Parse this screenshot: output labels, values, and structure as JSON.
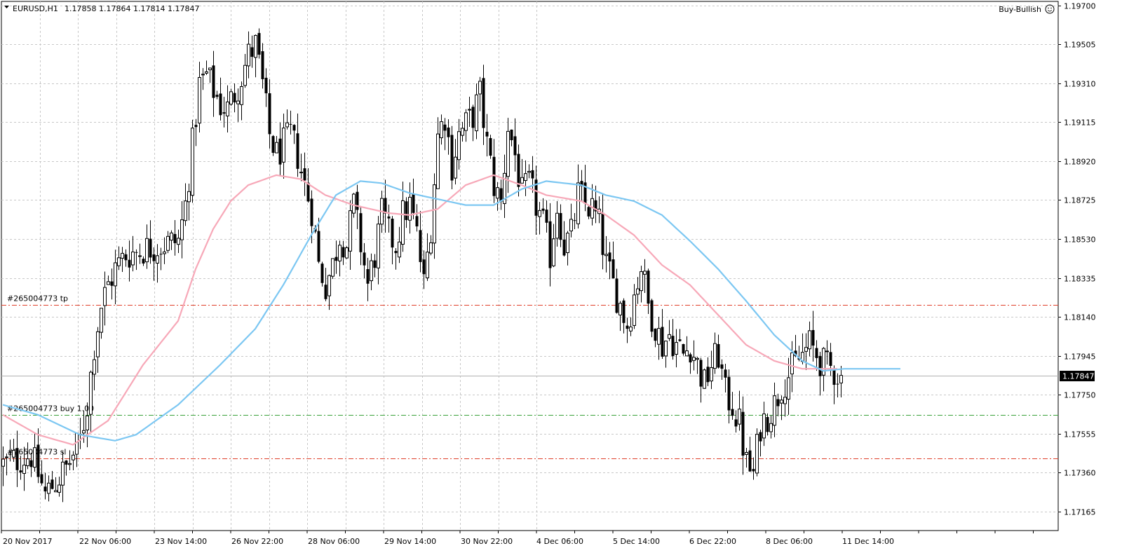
{
  "header": {
    "symbol": "EURUSD,H1",
    "ohlc": "1.17858 1.17864 1.17814 1.17847",
    "expert": "Buy-Bullish"
  },
  "colors": {
    "candle": "#000000",
    "ma_fast": "#f7a8b8",
    "ma_slow": "#7cc7f2",
    "tp_line": "#e0402a",
    "sl_line": "#e0402a",
    "entry_line": "#3aa13a",
    "grid": "#c8c8c8",
    "current_badge": "#000000"
  },
  "chart_data": {
    "type": "candlestick",
    "symbol": "EURUSD",
    "timeframe": "H1",
    "current_price": 1.17847,
    "current_price_label": "1.17847",
    "ylim": [
      1.1707,
      1.1972
    ],
    "y_ticks": [
      "1.19700",
      "1.19505",
      "1.19310",
      "1.19115",
      "1.18920",
      "1.18725",
      "1.18530",
      "1.18335",
      "1.18140",
      "1.17945",
      "1.17750",
      "1.17555",
      "1.17360",
      "1.17165"
    ],
    "x_ticks": [
      "20 Nov 2017",
      "22 Nov 06:00",
      "23 Nov 14:00",
      "26 Nov 22:00",
      "28 Nov 06:00",
      "29 Nov 14:00",
      "30 Nov 22:00",
      "4 Dec 06:00",
      "5 Dec 14:00",
      "6 Dec 22:00",
      "8 Dec 06:00",
      "11 Dec 14:00"
    ],
    "bar_count": 240,
    "close_anchors": [
      [
        0,
        1.174
      ],
      [
        8,
        1.1745
      ],
      [
        12,
        1.1725
      ],
      [
        18,
        1.1738
      ],
      [
        22,
        1.1752
      ],
      [
        24,
        1.177
      ],
      [
        26,
        1.18
      ],
      [
        28,
        1.182
      ],
      [
        30,
        1.183
      ],
      [
        32,
        1.1838
      ],
      [
        35,
        1.1845
      ],
      [
        40,
        1.1848
      ],
      [
        45,
        1.185
      ],
      [
        50,
        1.1852
      ],
      [
        52,
        1.187
      ],
      [
        54,
        1.19
      ],
      [
        56,
        1.193
      ],
      [
        58,
        1.1935
      ],
      [
        62,
        1.192
      ],
      [
        64,
        1.1918
      ],
      [
        67,
        1.193
      ],
      [
        70,
        1.1945
      ],
      [
        72,
        1.195
      ],
      [
        74,
        1.193
      ],
      [
        76,
        1.1905
      ],
      [
        78,
        1.1895
      ],
      [
        80,
        1.19
      ],
      [
        82,
        1.1905
      ],
      [
        84,
        1.1895
      ],
      [
        86,
        1.188
      ],
      [
        88,
        1.1868
      ],
      [
        90,
        1.184
      ],
      [
        92,
        1.183
      ],
      [
        94,
        1.184
      ],
      [
        96,
        1.1855
      ],
      [
        98,
        1.185
      ],
      [
        100,
        1.187
      ],
      [
        102,
        1.185
      ],
      [
        104,
        1.183
      ],
      [
        106,
        1.1845
      ],
      [
        108,
        1.1865
      ],
      [
        110,
        1.1855
      ],
      [
        112,
        1.185
      ],
      [
        114,
        1.1865
      ],
      [
        116,
        1.187
      ],
      [
        118,
        1.1855
      ],
      [
        120,
        1.183
      ],
      [
        122,
        1.186
      ],
      [
        124,
        1.1905
      ],
      [
        126,
        1.1915
      ],
      [
        128,
        1.189
      ],
      [
        130,
        1.1905
      ],
      [
        132,
        1.191
      ],
      [
        134,
        1.1915
      ],
      [
        136,
        1.1925
      ],
      [
        138,
        1.19
      ],
      [
        140,
        1.188
      ],
      [
        142,
        1.187
      ],
      [
        144,
        1.191
      ],
      [
        146,
        1.1895
      ],
      [
        148,
        1.1875
      ],
      [
        150,
        1.188
      ],
      [
        152,
        1.187
      ],
      [
        154,
        1.186
      ],
      [
        156,
        1.1845
      ],
      [
        158,
        1.187
      ],
      [
        160,
        1.185
      ],
      [
        162,
        1.1855
      ],
      [
        164,
        1.1875
      ],
      [
        166,
        1.187
      ],
      [
        168,
        1.1868
      ],
      [
        170,
        1.186
      ],
      [
        172,
        1.184
      ],
      [
        174,
        1.183
      ],
      [
        176,
        1.182
      ],
      [
        178,
        1.181
      ],
      [
        180,
        1.1825
      ],
      [
        182,
        1.184
      ],
      [
        184,
        1.182
      ],
      [
        186,
        1.181
      ],
      [
        188,
        1.18
      ],
      [
        190,
        1.1805
      ],
      [
        192,
        1.18
      ],
      [
        194,
        1.1795
      ],
      [
        196,
        1.18
      ],
      [
        198,
        1.179
      ],
      [
        200,
        1.178
      ],
      [
        202,
        1.179
      ],
      [
        204,
        1.1795
      ],
      [
        206,
        1.1775
      ],
      [
        208,
        1.177
      ],
      [
        210,
        1.176
      ],
      [
        212,
        1.174
      ],
      [
        214,
        1.1735
      ],
      [
        216,
        1.176
      ],
      [
        218,
        1.1765
      ],
      [
        220,
        1.177
      ],
      [
        222,
        1.178
      ],
      [
        224,
        1.1785
      ],
      [
        226,
        1.179
      ],
      [
        228,
        1.1795
      ],
      [
        230,
        1.18
      ],
      [
        232,
        1.1795
      ],
      [
        234,
        1.179
      ],
      [
        236,
        1.1788
      ],
      [
        238,
        1.1786
      ],
      [
        239,
        1.17847
      ]
    ],
    "ma_fast_anchors": [
      [
        0,
        1.1765
      ],
      [
        10,
        1.1755
      ],
      [
        20,
        1.175
      ],
      [
        30,
        1.1762
      ],
      [
        40,
        1.179
      ],
      [
        50,
        1.1812
      ],
      [
        55,
        1.1838
      ],
      [
        60,
        1.1858
      ],
      [
        65,
        1.1872
      ],
      [
        70,
        1.188
      ],
      [
        78,
        1.1885
      ],
      [
        85,
        1.1883
      ],
      [
        92,
        1.1875
      ],
      [
        100,
        1.187
      ],
      [
        110,
        1.1866
      ],
      [
        116,
        1.1865
      ],
      [
        124,
        1.1868
      ],
      [
        132,
        1.188
      ],
      [
        140,
        1.1885
      ],
      [
        148,
        1.188
      ],
      [
        155,
        1.1875
      ],
      [
        165,
        1.1872
      ],
      [
        172,
        1.1865
      ],
      [
        180,
        1.1855
      ],
      [
        188,
        1.184
      ],
      [
        196,
        1.183
      ],
      [
        204,
        1.1815
      ],
      [
        212,
        1.18
      ],
      [
        220,
        1.1792
      ],
      [
        228,
        1.1788
      ],
      [
        234,
        1.1788
      ],
      [
        238,
        1.1788
      ]
    ],
    "ma_slow_anchors": [
      [
        0,
        1.177
      ],
      [
        10,
        1.1765
      ],
      [
        22,
        1.1755
      ],
      [
        32,
        1.1752
      ],
      [
        38,
        1.1755
      ],
      [
        50,
        1.177
      ],
      [
        62,
        1.179
      ],
      [
        72,
        1.1808
      ],
      [
        80,
        1.183
      ],
      [
        88,
        1.1855
      ],
      [
        95,
        1.1875
      ],
      [
        102,
        1.1882
      ],
      [
        108,
        1.1881
      ],
      [
        116,
        1.1876
      ],
      [
        124,
        1.1873
      ],
      [
        132,
        1.187
      ],
      [
        140,
        1.187
      ],
      [
        148,
        1.1878
      ],
      [
        155,
        1.1882
      ],
      [
        165,
        1.188
      ],
      [
        172,
        1.1875
      ],
      [
        180,
        1.1872
      ],
      [
        188,
        1.1865
      ],
      [
        196,
        1.1852
      ],
      [
        204,
        1.1838
      ],
      [
        212,
        1.1822
      ],
      [
        220,
        1.1805
      ],
      [
        228,
        1.1792
      ],
      [
        234,
        1.1787
      ],
      [
        240,
        1.1788
      ],
      [
        246,
        1.1788
      ]
    ],
    "levels": [
      {
        "name": "tp",
        "label": "#265004773 tp",
        "price": 1.182,
        "style": "dashdot"
      },
      {
        "name": "entry",
        "label": "#265004773 buy 1.00",
        "price": 1.1765,
        "style": "dashdot"
      },
      {
        "name": "sl",
        "label": "#265004773 sl",
        "price": 1.1743,
        "style": "dashdot"
      }
    ],
    "grid": true
  }
}
